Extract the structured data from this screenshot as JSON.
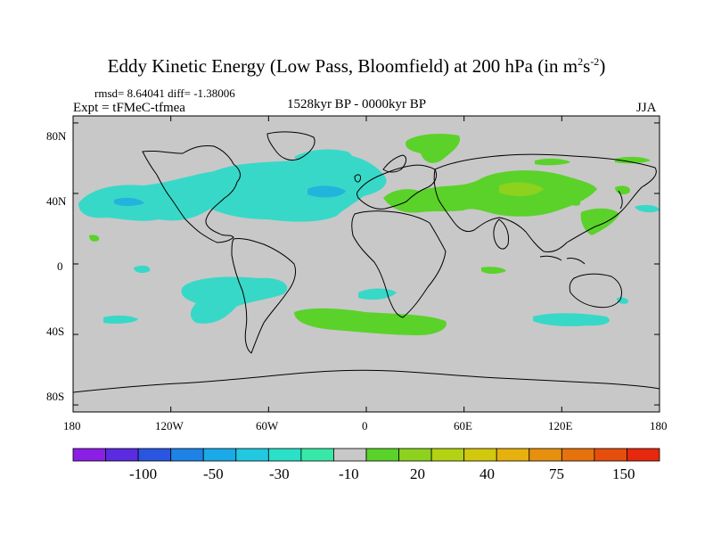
{
  "title": {
    "main": "Eddy Kinetic Energy (Low Pass, Bloomfield) at 200 hPa (in m",
    "sup1": "2",
    "mid": "s",
    "sup2": "-2",
    "close": ")"
  },
  "stats": "rmsd= 8.64041 diff= -1.38006",
  "left_label": "Expt = tFMeC-tfmea",
  "center_label": "1528kyr BP - 0000kyr BP",
  "right_label": "JJA",
  "lat_labels": [
    "80N",
    "40N",
    "0",
    "40S",
    "80S"
  ],
  "lon_labels": [
    "180",
    "120W",
    "60W",
    "0",
    "60E",
    "120E",
    "180"
  ],
  "colorbar": {
    "labels": [
      "-100",
      "-50",
      "-30",
      "-10",
      "20",
      "40",
      "75",
      "150"
    ],
    "colors": [
      "#8b1fe6",
      "#5a2be0",
      "#2a55e0",
      "#1e82e6",
      "#1aaae8",
      "#22c8e0",
      "#2ae0c8",
      "#38e8a8",
      "#c8c8c8",
      "#5ad22a",
      "#8cd21e",
      "#b4d214",
      "#d2c80e",
      "#e6b00e",
      "#e6900e",
      "#e6720e",
      "#e64e0e",
      "#e6280e"
    ]
  },
  "map": {
    "background": "#c8c8c8",
    "negative_fill": "#38d8c8",
    "negative_strong_fill": "#22b4dc",
    "positive_fill": "#5ad22a",
    "positive_strong_fill": "#8cd21e",
    "coast_color": "#000000"
  }
}
